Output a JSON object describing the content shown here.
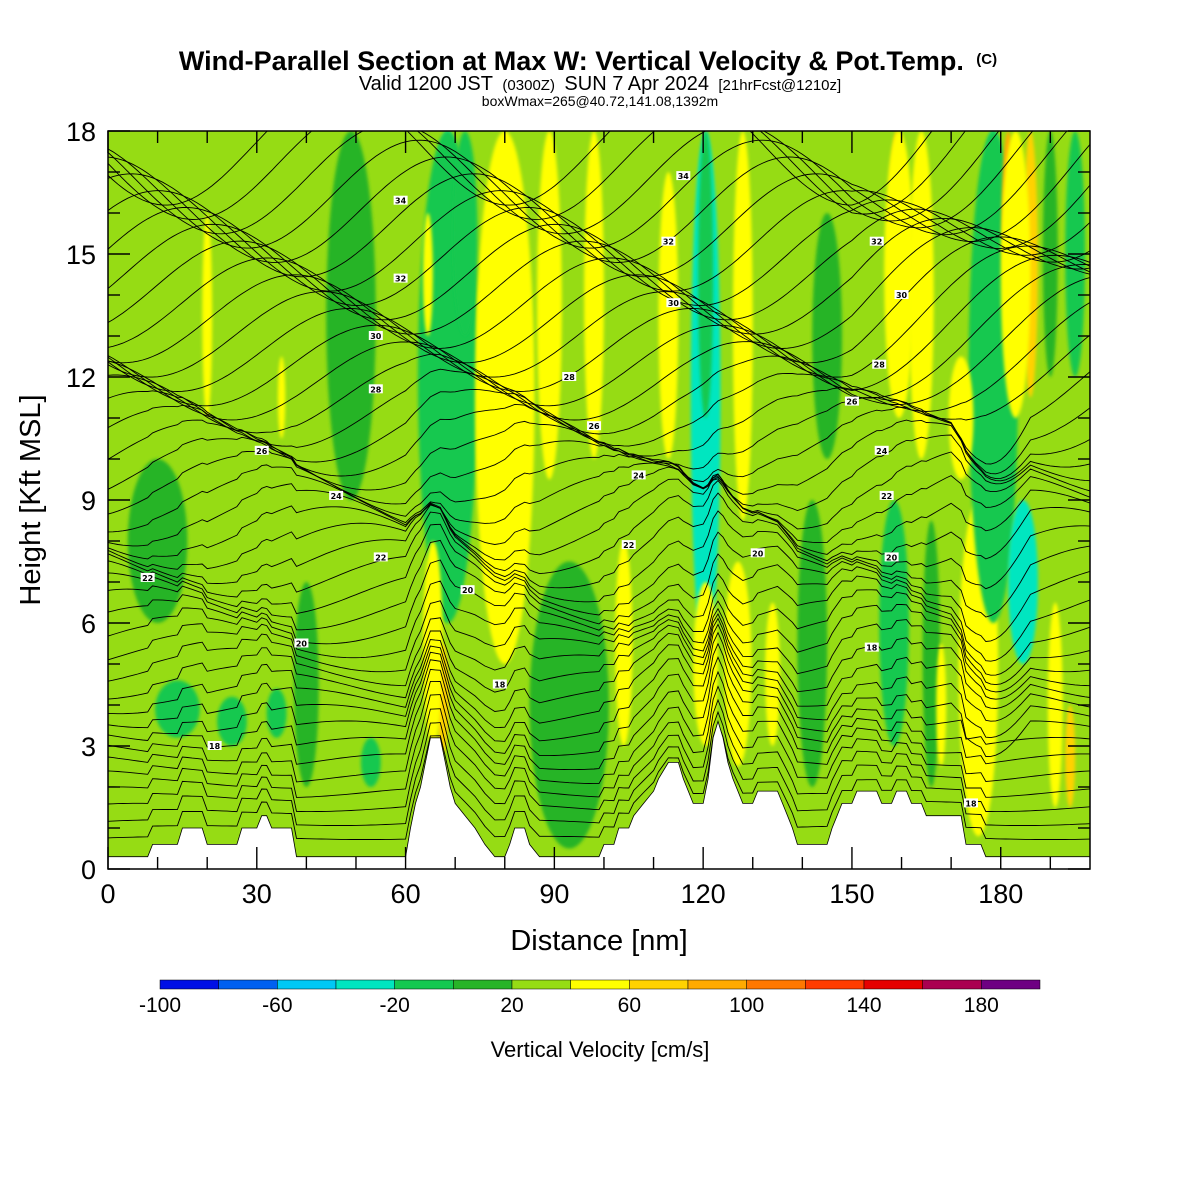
{
  "title": {
    "main": "Wind-Parallel Section at Max W: Vertical Velocity & Pot.Temp.",
    "copyright": "(C)",
    "valid_prefix": "Valid 1200 JST",
    "valid_utc": "(0300Z)",
    "valid_date": "SUN 7 Apr 2024",
    "forecast": "[21hrFcst@1210z]",
    "box_info": "boxWmax=265@40.72,141.08,1392m"
  },
  "chart_data": {
    "type": "heatmap",
    "xlabel": "Distance [nm]",
    "ylabel": "Height [Kft MSL]",
    "xlim": [
      0,
      198
    ],
    "ylim": [
      0,
      18
    ],
    "x_ticks": [
      "0",
      "30",
      "60",
      "90",
      "120",
      "150",
      "180"
    ],
    "y_ticks": [
      "0",
      "3",
      "6",
      "9",
      "12",
      "15",
      "18"
    ],
    "colorbar": {
      "title": "Vertical Velocity [cm/s]",
      "tick_labels": [
        "-100",
        "-60",
        "-20",
        "20",
        "60",
        "100",
        "140",
        "180"
      ],
      "bounds": [
        -100,
        200
      ],
      "colors": [
        "#0010e6",
        "#0060f0",
        "#00c8f5",
        "#00e6c0",
        "#14c850",
        "#28b428",
        "#96dc14",
        "#ffff00",
        "#ffd200",
        "#ffaa00",
        "#ff7800",
        "#ff3c00",
        "#e60000",
        "#aa0050",
        "#6e0082"
      ]
    },
    "background_category": 20,
    "terrain_kft": [
      [
        0,
        0.3
      ],
      [
        8,
        0.3
      ],
      [
        9,
        0.6
      ],
      [
        14,
        0.6
      ],
      [
        15,
        1.0
      ],
      [
        19,
        1.0
      ],
      [
        20,
        0.6
      ],
      [
        26,
        0.6
      ],
      [
        27,
        1.0
      ],
      [
        30,
        1.0
      ],
      [
        31,
        1.3
      ],
      [
        32,
        1.3
      ],
      [
        33,
        1.0
      ],
      [
        37,
        1.0
      ],
      [
        38,
        0.3
      ],
      [
        60,
        0.3
      ],
      [
        61,
        1.0
      ],
      [
        62,
        1.6
      ],
      [
        63,
        2.0
      ],
      [
        64,
        2.6
      ],
      [
        65,
        3.2
      ],
      [
        67,
        3.2
      ],
      [
        68,
        2.6
      ],
      [
        69,
        2.0
      ],
      [
        70,
        1.6
      ],
      [
        72,
        1.3
      ],
      [
        74,
        1.0
      ],
      [
        76,
        0.6
      ],
      [
        78,
        0.3
      ],
      [
        80,
        0.3
      ],
      [
        81,
        0.6
      ],
      [
        82,
        1.0
      ],
      [
        84,
        1.0
      ],
      [
        85,
        0.6
      ],
      [
        87,
        0.3
      ],
      [
        99,
        0.3
      ],
      [
        100,
        0.6
      ],
      [
        102,
        0.6
      ],
      [
        103,
        1.0
      ],
      [
        105,
        1.0
      ],
      [
        106,
        1.3
      ],
      [
        108,
        1.6
      ],
      [
        110,
        1.9
      ],
      [
        111,
        2.2
      ],
      [
        113,
        2.6
      ],
      [
        115,
        2.6
      ],
      [
        116,
        2.2
      ],
      [
        117,
        1.9
      ],
      [
        118,
        1.6
      ],
      [
        120,
        1.6
      ],
      [
        121,
        2.2
      ],
      [
        122,
        3.2
      ],
      [
        123,
        3.6
      ],
      [
        124,
        3.2
      ],
      [
        125,
        2.6
      ],
      [
        126,
        2.2
      ],
      [
        127,
        1.9
      ],
      [
        128,
        1.6
      ],
      [
        130,
        1.6
      ],
      [
        131,
        1.9
      ],
      [
        135,
        1.9
      ],
      [
        136,
        1.6
      ],
      [
        137,
        1.3
      ],
      [
        138,
        1.0
      ],
      [
        139,
        0.6
      ],
      [
        145,
        0.6
      ],
      [
        146,
        1.0
      ],
      [
        147,
        1.3
      ],
      [
        148,
        1.6
      ],
      [
        150,
        1.6
      ],
      [
        151,
        1.9
      ],
      [
        155,
        1.9
      ],
      [
        156,
        1.6
      ],
      [
        158,
        1.6
      ],
      [
        159,
        1.9
      ],
      [
        161,
        1.9
      ],
      [
        162,
        1.6
      ],
      [
        164,
        1.6
      ],
      [
        165,
        1.3
      ],
      [
        172,
        1.3
      ],
      [
        173,
        0.6
      ],
      [
        176,
        0.6
      ],
      [
        177,
        0.3
      ],
      [
        198,
        0.3
      ]
    ],
    "vertical_velocity_features": [
      {
        "x": 68.5,
        "y0": 9.5,
        "y1": 17.5,
        "w": 4.0,
        "category": -80
      },
      {
        "x": 68.5,
        "y0": 7.0,
        "y1": 18.0,
        "w": 8.0,
        "category": -40
      },
      {
        "x": 68.5,
        "y0": 6.0,
        "y1": 18.0,
        "w": 12.0,
        "category": -20
      },
      {
        "x": 67.5,
        "y0": 2.8,
        "y1": 5.5,
        "w": 2.5,
        "category": 60
      },
      {
        "x": 65.5,
        "y0": 3.0,
        "y1": 8.0,
        "w": 4.0,
        "category": 40
      },
      {
        "x": 64.5,
        "y0": 13.0,
        "y1": 16.0,
        "w": 2.0,
        "category": 40
      },
      {
        "x": 80.0,
        "y0": 5.0,
        "y1": 18.0,
        "w": 12.0,
        "category": 40
      },
      {
        "x": 72.0,
        "y0": 13.0,
        "y1": 18.0,
        "w": 5.0,
        "category": -20
      },
      {
        "x": 120.5,
        "y0": 5.0,
        "y1": 18.0,
        "w": 6.0,
        "category": -40
      },
      {
        "x": 120.5,
        "y0": 11.0,
        "y1": 18.0,
        "w": 3.0,
        "category": -20
      },
      {
        "x": 128.0,
        "y0": 8.5,
        "y1": 18.0,
        "w": 4.0,
        "category": 40
      },
      {
        "x": 120.5,
        "y0": 3.5,
        "y1": 6.0,
        "w": 3.0,
        "category": 60
      },
      {
        "x": 127.0,
        "y0": 3.0,
        "y1": 6.5,
        "w": 3.5,
        "category": 60
      },
      {
        "x": 120.5,
        "y0": 3.0,
        "y1": 7.0,
        "w": 5.0,
        "category": 40
      },
      {
        "x": 127.0,
        "y0": 2.5,
        "y1": 7.5,
        "w": 5.5,
        "category": 40
      },
      {
        "x": 134.0,
        "y0": 3.0,
        "y1": 6.5,
        "w": 3.0,
        "category": 40
      },
      {
        "x": 159.0,
        "y0": 12.0,
        "y1": 18.0,
        "w": 3.0,
        "category": 60
      },
      {
        "x": 159.5,
        "y0": 11.0,
        "y1": 18.0,
        "w": 6.0,
        "category": 40
      },
      {
        "x": 164.0,
        "y0": 10.0,
        "y1": 18.0,
        "w": 5.0,
        "category": 40
      },
      {
        "x": 158.5,
        "y0": 4.5,
        "y1": 8.5,
        "w": 3.0,
        "category": -60
      },
      {
        "x": 158.5,
        "y0": 3.0,
        "y1": 9.0,
        "w": 6.0,
        "category": -20
      },
      {
        "x": 175.5,
        "y0": 1.5,
        "y1": 6.5,
        "w": 2.5,
        "category": 180
      },
      {
        "x": 175.5,
        "y0": 1.5,
        "y1": 7.5,
        "w": 4.0,
        "category": 120
      },
      {
        "x": 175.5,
        "y0": 1.0,
        "y1": 8.5,
        "w": 6.0,
        "category": 80
      },
      {
        "x": 175.5,
        "y0": 0.8,
        "y1": 9.0,
        "w": 8.0,
        "category": 40
      },
      {
        "x": 179.5,
        "y0": 7.0,
        "y1": 10.0,
        "w": 3.0,
        "category": -80
      },
      {
        "x": 178.5,
        "y0": 10.5,
        "y1": 18.0,
        "w": 6.0,
        "category": -40
      },
      {
        "x": 178.5,
        "y0": 6.0,
        "y1": 18.0,
        "w": 10.0,
        "category": -20
      },
      {
        "x": 184.5,
        "y0": 6.0,
        "y1": 8.0,
        "w": 3.0,
        "category": -80
      },
      {
        "x": 184.5,
        "y0": 5.0,
        "y1": 9.0,
        "w": 6.0,
        "category": -40
      },
      {
        "x": 186.0,
        "y0": 11.5,
        "y1": 18.0,
        "w": 3.0,
        "category": 60
      },
      {
        "x": 181.5,
        "y0": 14.0,
        "y1": 18.0,
        "w": 2.5,
        "category": 80
      },
      {
        "x": 183.0,
        "y0": 11.0,
        "y1": 18.0,
        "w": 6.0,
        "category": 40
      },
      {
        "x": 14.0,
        "y0": 3.2,
        "y1": 4.6,
        "w": 9.0,
        "category": -20
      },
      {
        "x": 25.0,
        "y0": 3.0,
        "y1": 4.2,
        "w": 6.0,
        "category": -20
      },
      {
        "x": 34.0,
        "y0": 3.2,
        "y1": 4.4,
        "w": 4.0,
        "category": -20
      },
      {
        "x": 40.0,
        "y0": 2.0,
        "y1": 7.0,
        "w": 5.0,
        "category": 0
      },
      {
        "x": 53.0,
        "y0": 2.0,
        "y1": 3.2,
        "w": 4.0,
        "category": -20
      },
      {
        "x": 49.0,
        "y0": 9.0,
        "y1": 18.0,
        "w": 10.0,
        "category": 0
      },
      {
        "x": 20.0,
        "y0": 11.0,
        "y1": 16.0,
        "w": 2.0,
        "category": 40
      },
      {
        "x": 35.0,
        "y0": 10.5,
        "y1": 12.5,
        "w": 1.5,
        "category": 40
      },
      {
        "x": 10.0,
        "y0": 6.0,
        "y1": 10.0,
        "w": 12.0,
        "category": 0
      },
      {
        "x": 89.0,
        "y0": 9.5,
        "y1": 18.0,
        "w": 5.0,
        "category": 40
      },
      {
        "x": 98.0,
        "y0": 10.0,
        "y1": 18.0,
        "w": 4.0,
        "category": 40
      },
      {
        "x": 93.0,
        "y0": 0.5,
        "y1": 7.5,
        "w": 16.0,
        "category": 0
      },
      {
        "x": 104.0,
        "y0": 3.0,
        "y1": 8.0,
        "w": 3.5,
        "category": 40
      },
      {
        "x": 113.0,
        "y0": 10.0,
        "y1": 17.0,
        "w": 4.0,
        "category": 40
      },
      {
        "x": 142.0,
        "y0": 2.0,
        "y1": 9.0,
        "w": 6.0,
        "category": 0
      },
      {
        "x": 145.0,
        "y0": 10.0,
        "y1": 16.0,
        "w": 6.0,
        "category": 0
      },
      {
        "x": 166.0,
        "y0": 2.0,
        "y1": 8.5,
        "w": 3.5,
        "category": 0
      },
      {
        "x": 168.0,
        "y0": 2.5,
        "y1": 5.5,
        "w": 2.0,
        "category": 40
      },
      {
        "x": 172.0,
        "y0": 9.5,
        "y1": 12.5,
        "w": 5.0,
        "category": 40
      },
      {
        "x": 191.0,
        "y0": 1.5,
        "y1": 6.5,
        "w": 3.0,
        "category": 40
      },
      {
        "x": 194.0,
        "y0": 1.5,
        "y1": 4.0,
        "w": 2.0,
        "category": 60
      },
      {
        "x": 195.0,
        "y0": 12.0,
        "y1": 18.0,
        "w": 4.0,
        "category": -20
      },
      {
        "x": 190.0,
        "y0": 12.0,
        "y1": 18.0,
        "w": 3.0,
        "category": 0
      }
    ],
    "theta_contour_labels": [
      {
        "x": 59.0,
        "y": 16.3,
        "text": "34"
      },
      {
        "x": 116.0,
        "y": 16.9,
        "text": "34"
      },
      {
        "x": 113.0,
        "y": 15.3,
        "text": "32"
      },
      {
        "x": 59.0,
        "y": 14.4,
        "text": "32"
      },
      {
        "x": 155.0,
        "y": 15.3,
        "text": "32"
      },
      {
        "x": 160.0,
        "y": 14.0,
        "text": "30"
      },
      {
        "x": 114.0,
        "y": 13.8,
        "text": "30"
      },
      {
        "x": 54.0,
        "y": 13.0,
        "text": "30"
      },
      {
        "x": 155.5,
        "y": 12.3,
        "text": "28"
      },
      {
        "x": 93.0,
        "y": 12.0,
        "text": "28"
      },
      {
        "x": 54.0,
        "y": 11.7,
        "text": "28"
      },
      {
        "x": 150.0,
        "y": 11.4,
        "text": "26"
      },
      {
        "x": 98.0,
        "y": 10.8,
        "text": "26"
      },
      {
        "x": 31.0,
        "y": 10.2,
        "text": "26"
      },
      {
        "x": 156.0,
        "y": 10.2,
        "text": "24"
      },
      {
        "x": 107.0,
        "y": 9.6,
        "text": "24"
      },
      {
        "x": 46.0,
        "y": 9.1,
        "text": "24"
      },
      {
        "x": 157.0,
        "y": 9.1,
        "text": "22"
      },
      {
        "x": 105.0,
        "y": 7.9,
        "text": "22"
      },
      {
        "x": 55.0,
        "y": 7.6,
        "text": "22"
      },
      {
        "x": 8.0,
        "y": 7.1,
        "text": "22"
      },
      {
        "x": 131.0,
        "y": 7.7,
        "text": "20"
      },
      {
        "x": 72.5,
        "y": 6.8,
        "text": "20"
      },
      {
        "x": 158.0,
        "y": 7.6,
        "text": "20"
      },
      {
        "x": 39.0,
        "y": 5.5,
        "text": "20"
      },
      {
        "x": 154.0,
        "y": 5.4,
        "text": "18"
      },
      {
        "x": 79.0,
        "y": 4.5,
        "text": "18"
      },
      {
        "x": 21.5,
        "y": 3.0,
        "text": "18"
      },
      {
        "x": 174.0,
        "y": 1.6,
        "text": "18"
      }
    ]
  }
}
